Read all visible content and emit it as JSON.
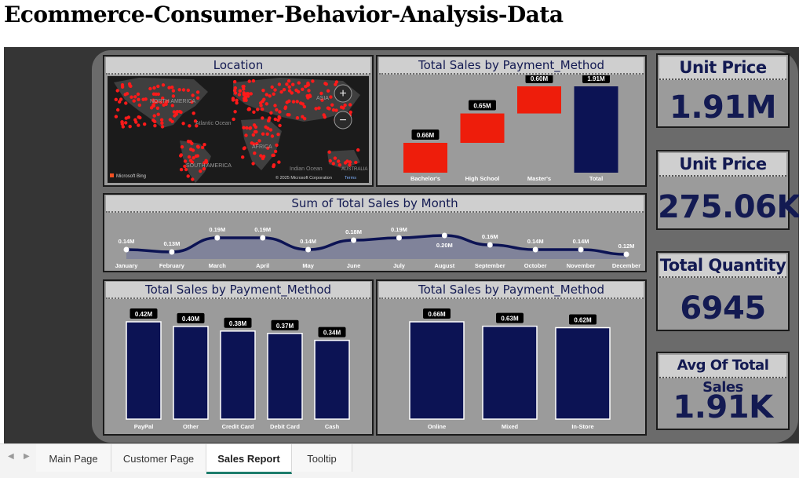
{
  "page": {
    "title": "Ecommerce-Consumer-Behavior-Analysis-Data"
  },
  "map": {
    "title": "Location",
    "labels": {
      "north_america": "NORTH AMERICA",
      "atlantic": "Atlantic Ocean",
      "africa": "AFRICA",
      "south_america": "SOUTH AMERICA",
      "asia": "ASIA",
      "indian": "Indian Ocean",
      "australia": "AUSTRALIA"
    },
    "zoom_in": "+",
    "zoom_out": "−",
    "attribution": "© 2025 Microsoft Corporation",
    "terms": "Terms",
    "bing": "Microsoft Bing"
  },
  "kpis": [
    {
      "title": "Unit Price",
      "value": "1.91M"
    },
    {
      "title": "Unit Price",
      "value": "275.06K"
    },
    {
      "title": "Total Quantity",
      "value": "6945"
    },
    {
      "title": "Avg Of Total Sales",
      "value": "1.91K"
    }
  ],
  "tabs": [
    "Main Page",
    "Customer Page",
    "Sales Report",
    "Tooltip"
  ],
  "active_tab": "Sales Report",
  "colors": {
    "navy": "#0c1354",
    "red": "#ee1d0b",
    "panel": "#9b9b9b",
    "title_bg": "#cfcfcf",
    "accent": "#1d7c6b"
  },
  "chart_data": [
    {
      "type": "bar",
      "subtype": "waterfall",
      "title": "Total Sales by Payment_Method",
      "categories": [
        "Bachelor's",
        "High School",
        "Master's",
        "Total"
      ],
      "values": [
        0.66,
        0.65,
        0.6,
        1.91
      ],
      "labels": [
        "0.66M",
        "0.65M",
        "0.60M",
        "1.91M"
      ],
      "colors": [
        "#ee1d0b",
        "#ee1d0b",
        "#ee1d0b",
        "#0c1354"
      ],
      "ylim": [
        0,
        1.91
      ]
    },
    {
      "type": "area",
      "title": "Sum of Total Sales by Month",
      "categories": [
        "January",
        "February",
        "March",
        "April",
        "May",
        "June",
        "July",
        "August",
        "September",
        "October",
        "November",
        "December"
      ],
      "values": [
        0.14,
        0.13,
        0.19,
        0.19,
        0.14,
        0.18,
        0.19,
        0.2,
        0.16,
        0.14,
        0.14,
        0.12
      ],
      "labels": [
        "0.14M",
        "0.13M",
        "0.19M",
        "0.19M",
        "0.14M",
        "0.18M",
        "0.19M",
        "0.20M",
        "0.16M",
        "0.14M",
        "0.14M",
        "0.12M"
      ],
      "ylim": [
        0.1,
        0.21
      ]
    },
    {
      "type": "bar",
      "title": "Total Sales by Payment_Method",
      "categories": [
        "PayPal",
        "Other",
        "Credit Card",
        "Debit Card",
        "Cash"
      ],
      "values": [
        0.42,
        0.4,
        0.38,
        0.37,
        0.34
      ],
      "labels": [
        "0.42M",
        "0.40M",
        "0.38M",
        "0.37M",
        "0.34M"
      ],
      "ylim": [
        0,
        0.42
      ]
    },
    {
      "type": "bar",
      "title": "Total Sales by Payment_Method",
      "categories": [
        "Online",
        "Mixed",
        "In-Store"
      ],
      "values": [
        0.66,
        0.63,
        0.62
      ],
      "labels": [
        "0.66M",
        "0.63M",
        "0.62M"
      ],
      "ylim": [
        0,
        0.66
      ]
    }
  ]
}
